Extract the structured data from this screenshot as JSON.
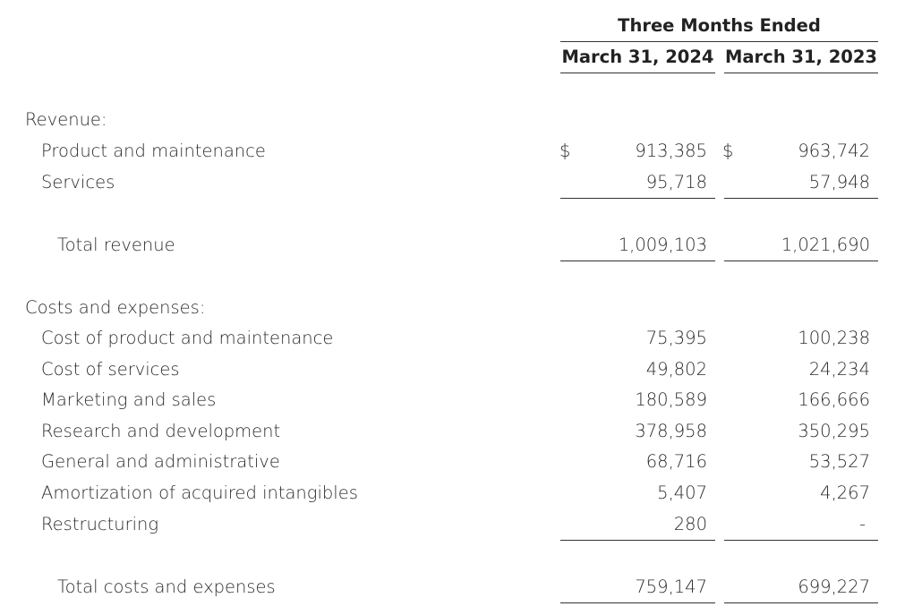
{
  "header": {
    "period_title": "Three Months Ended",
    "columns": [
      "March 31, 2024",
      "March 31, 2023"
    ]
  },
  "revenue": {
    "section_label": "Revenue:",
    "currency_symbol": "$",
    "rows": [
      {
        "label": "Product and maintenance",
        "v2024": "913,385",
        "v2023": "963,742"
      },
      {
        "label": "Services",
        "v2024": "95,718",
        "v2023": "57,948"
      }
    ],
    "total": {
      "label": "Total revenue",
      "v2024": "1,009,103",
      "v2023": "1,021,690"
    }
  },
  "costs": {
    "section_label": "Costs and expenses:",
    "rows": [
      {
        "label": "Cost of product and maintenance",
        "v2024": "75,395",
        "v2023": "100,238"
      },
      {
        "label": "Cost of services",
        "v2024": "49,802",
        "v2023": "24,234"
      },
      {
        "label": "Marketing and sales",
        "v2024": "180,589",
        "v2023": "166,666"
      },
      {
        "label": "Research and development",
        "v2024": "378,958",
        "v2023": "350,295"
      },
      {
        "label": "General and administrative",
        "v2024": "68,716",
        "v2023": "53,527"
      },
      {
        "label": "Amortization of acquired intangibles",
        "v2024": "5,407",
        "v2023": "4,267"
      },
      {
        "label": "Restructuring",
        "v2024": "280",
        "v2023": "-"
      }
    ],
    "total": {
      "label": "Total costs and expenses",
      "v2024": "759,147",
      "v2023": "699,227"
    }
  }
}
